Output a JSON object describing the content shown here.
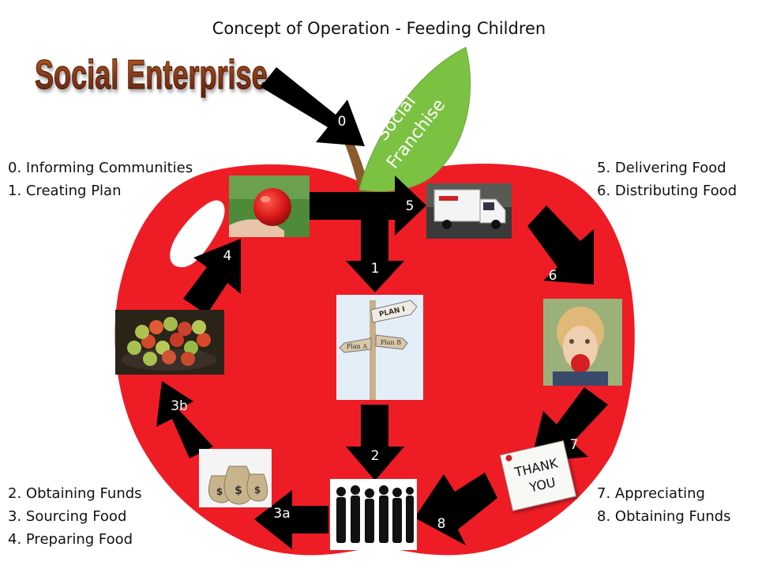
{
  "title": "Concept of Operation - Feeding Children",
  "logo_text": "Social Enterprise",
  "leaf_text": [
    "Social",
    "Franchise"
  ],
  "legend": {
    "top_left": [
      "0. Informing Communities",
      "1. Creating Plan"
    ],
    "top_right": [
      "5. Delivering Food",
      "6. Distributing Food"
    ],
    "bottom_left": [
      "2. Obtaining Funds",
      "3. Sourcing Food",
      "4. Preparing Food"
    ],
    "bottom_right": [
      "7. Appreciating",
      "8. Obtaining Funds"
    ]
  },
  "arrow_labels": {
    "a0": "0",
    "a1": "1",
    "a2": "2",
    "a3a": "3a",
    "a3b": "3b",
    "a4": "4",
    "a5": "5",
    "a6": "6",
    "a7": "7",
    "a8": "8"
  },
  "signposts": [
    "PLAN I",
    "Plan A",
    "Plan B"
  ],
  "thank_you": [
    "THANK",
    "YOU"
  ],
  "colors": {
    "apple": "#ee1c25",
    "leaf": "#7cc242",
    "stem": "#8a5a2b",
    "arrow": "#000000"
  }
}
